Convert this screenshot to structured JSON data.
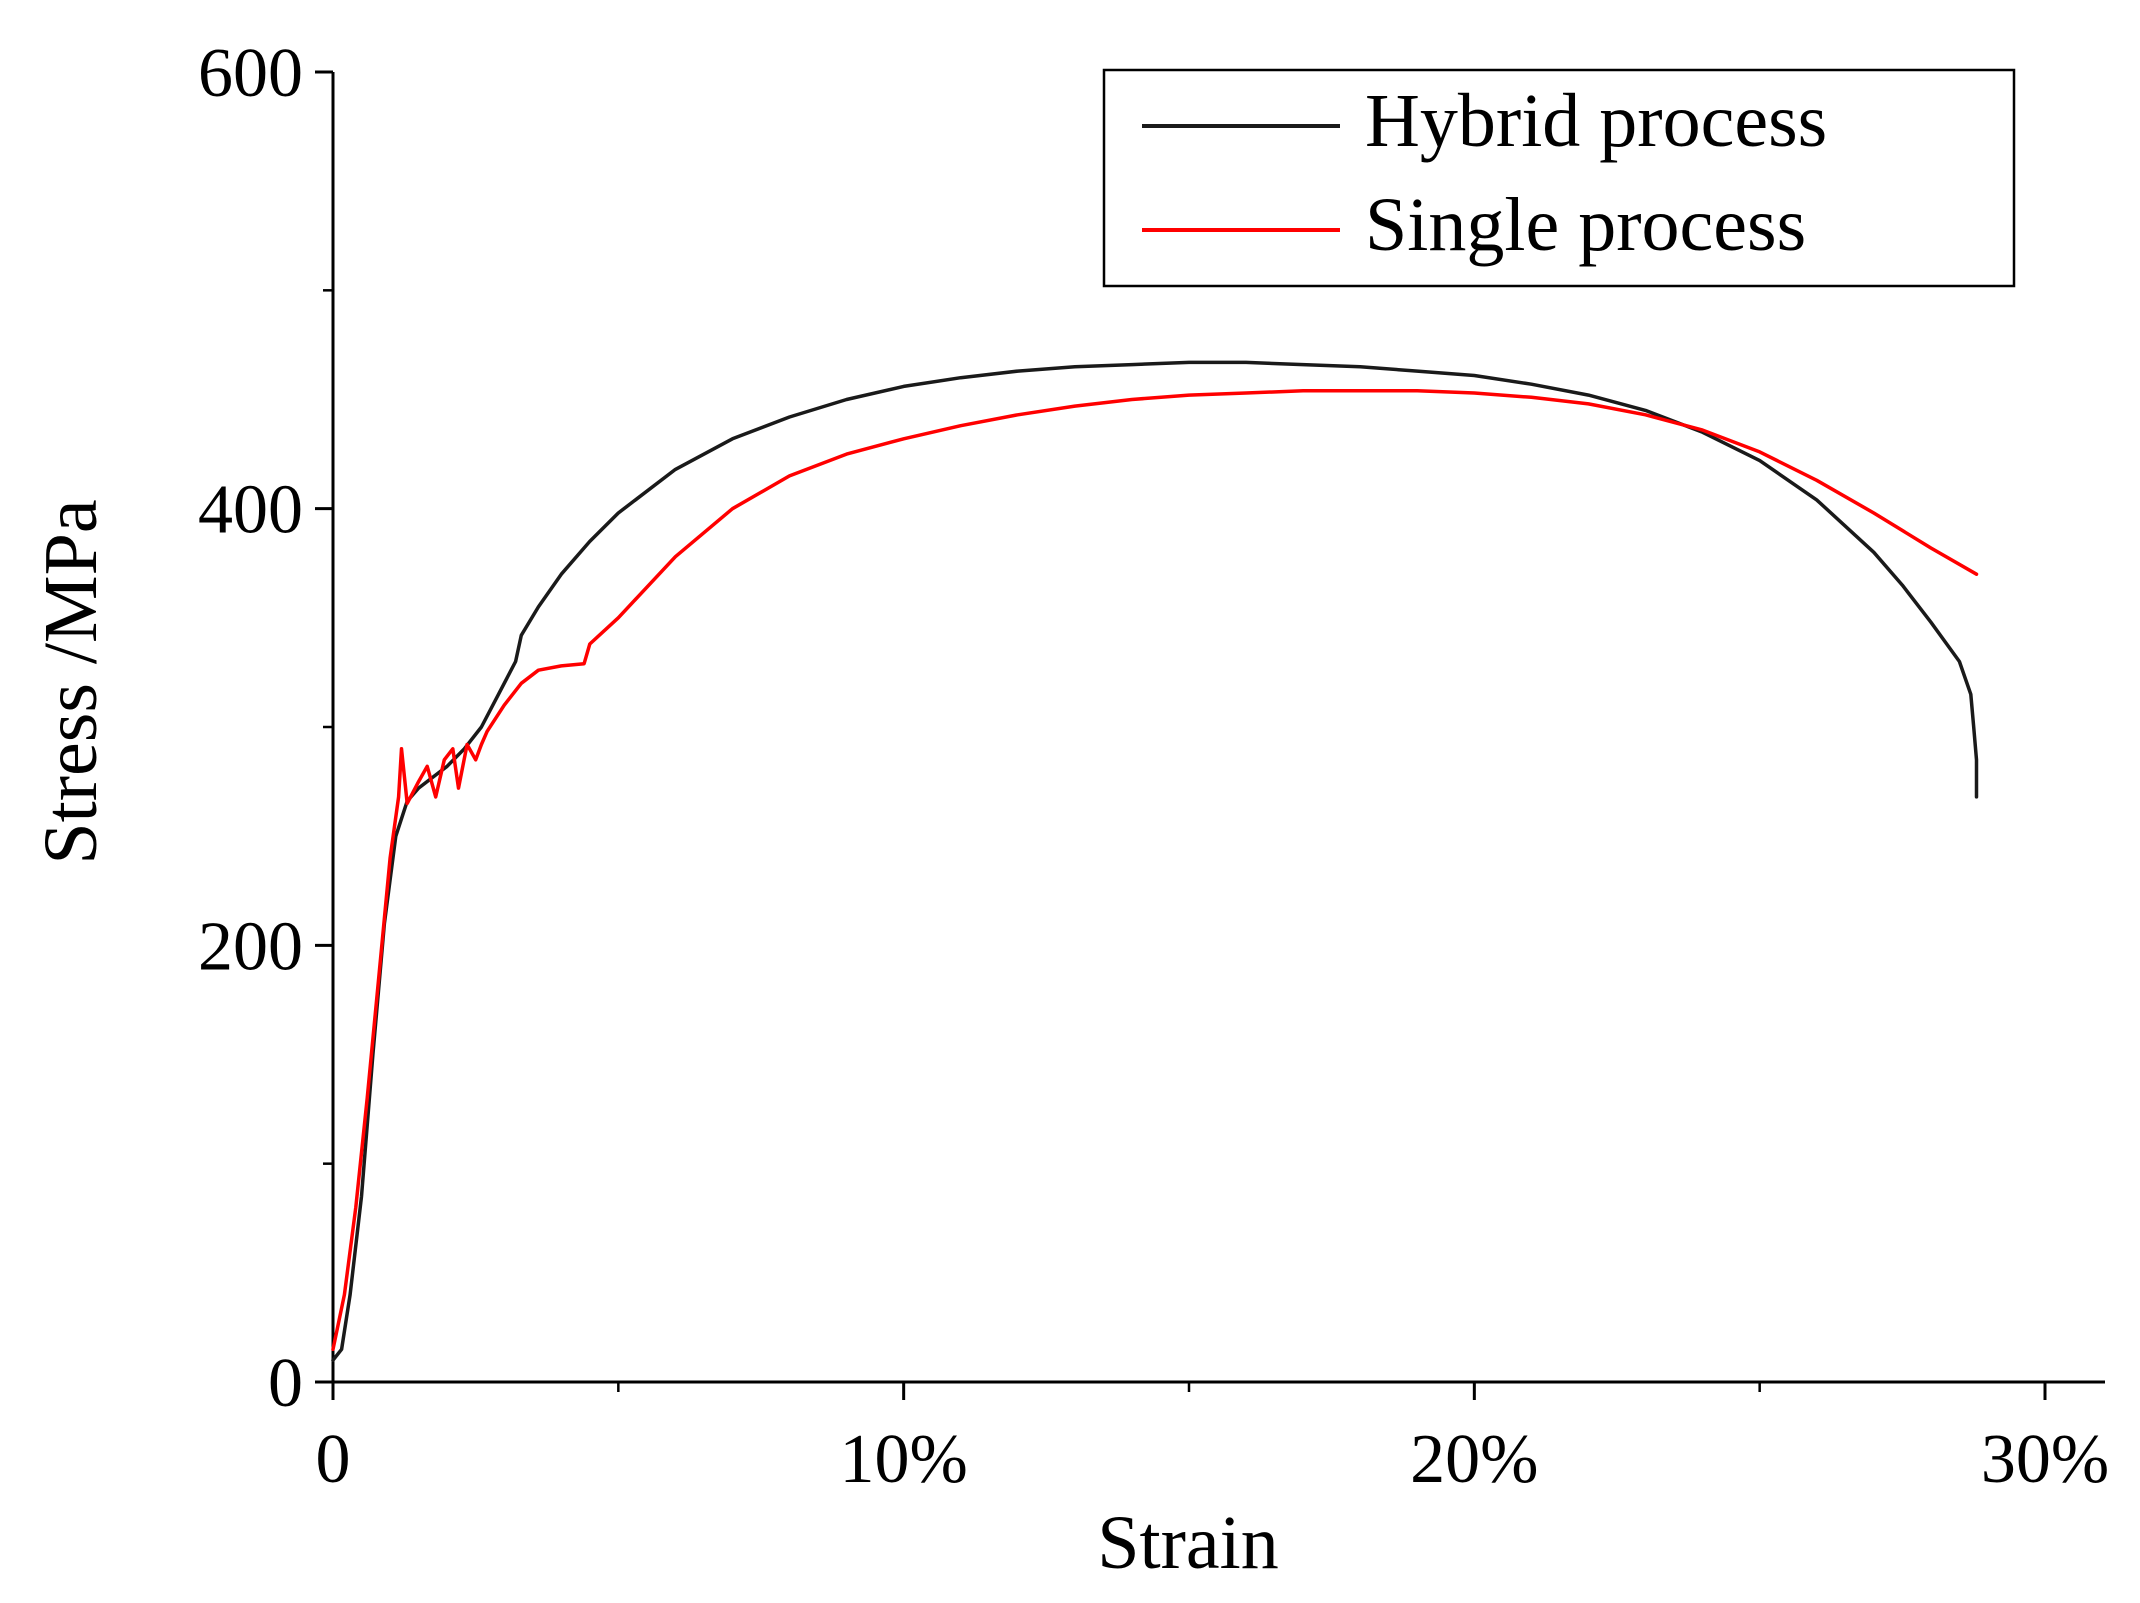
{
  "chart_data": {
    "type": "line",
    "title": "",
    "xlabel": "Strain",
    "ylabel": "Stress /MPa",
    "xlim": [
      0,
      31
    ],
    "ylim": [
      0,
      600
    ],
    "x_ticks": [
      {
        "value": 0,
        "label": "0"
      },
      {
        "value": 10,
        "label": "10%"
      },
      {
        "value": 20,
        "label": "20%"
      },
      {
        "value": 30,
        "label": "30%"
      }
    ],
    "x_minor_ticks": [
      5,
      15,
      25
    ],
    "y_ticks": [
      {
        "value": 0,
        "label": "0"
      },
      {
        "value": 200,
        "label": "200"
      },
      {
        "value": 400,
        "label": "400"
      },
      {
        "value": 600,
        "label": "600"
      }
    ],
    "y_minor_ticks": [
      100,
      300,
      500
    ],
    "grid": false,
    "legend_position": "top-right",
    "series": [
      {
        "name": "Hybrid process",
        "color": "#1a1a1a",
        "x": [
          0,
          0.15,
          0.3,
          0.5,
          0.7,
          0.9,
          1.1,
          1.3,
          1.5,
          1.7,
          2.0,
          2.3,
          2.6,
          2.9,
          3.2,
          3.3,
          3.6,
          4.0,
          4.5,
          5.0,
          6.0,
          7.0,
          8.0,
          9.0,
          10.0,
          11.0,
          12.0,
          13.0,
          14.0,
          15.0,
          16.0,
          17.0,
          18.0,
          19.0,
          20.0,
          21.0,
          22.0,
          23.0,
          24.0,
          25.0,
          26.0,
          27.0,
          27.5,
          28.0,
          28.5,
          28.7,
          28.75,
          28.8,
          28.8
        ],
        "y": [
          10,
          15,
          40,
          85,
          150,
          210,
          250,
          266,
          272,
          276,
          282,
          290,
          300,
          315,
          330,
          342,
          355,
          370,
          385,
          398,
          418,
          432,
          442,
          450,
          456,
          460,
          463,
          465,
          466,
          467,
          467,
          466,
          465,
          463,
          461,
          457,
          452,
          445,
          435,
          422,
          404,
          380,
          365,
          348,
          330,
          315,
          300,
          285,
          268
        ]
      },
      {
        "name": "Single process",
        "color": "#ff0000",
        "x": [
          0,
          0.2,
          0.4,
          0.6,
          0.8,
          1.0,
          1.15,
          1.2,
          1.3,
          1.5,
          1.65,
          1.8,
          1.95,
          2.1,
          2.2,
          2.35,
          2.5,
          2.6,
          2.7,
          3.0,
          3.3,
          3.6,
          4.0,
          4.4,
          4.5,
          5.0,
          6.0,
          7.0,
          8.0,
          9.0,
          10.0,
          11.0,
          12.0,
          13.0,
          14.0,
          15.0,
          16.0,
          17.0,
          18.0,
          19.0,
          20.0,
          21.0,
          22.0,
          23.0,
          24.0,
          25.0,
          26.0,
          27.0,
          28.0,
          28.8
        ],
        "y": [
          15,
          40,
          80,
          130,
          185,
          240,
          268,
          290,
          265,
          275,
          282,
          268,
          285,
          290,
          272,
          292,
          285,
          292,
          298,
          310,
          320,
          326,
          328,
          329,
          338,
          350,
          378,
          400,
          415,
          425,
          432,
          438,
          443,
          447,
          450,
          452,
          453,
          454,
          454,
          454,
          453,
          451,
          448,
          443,
          436,
          426,
          413,
          398,
          382,
          370
        ]
      }
    ]
  }
}
